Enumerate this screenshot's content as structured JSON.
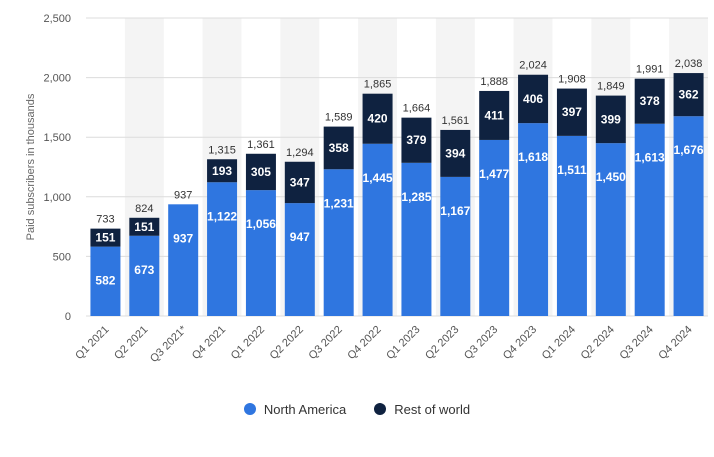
{
  "chart_data": {
    "type": "bar",
    "stacked": true,
    "categories": [
      "Q1 2021",
      "Q2 2021",
      "Q3 2021*",
      "Q4 2021",
      "Q1 2022",
      "Q2 2022",
      "Q3 2022",
      "Q4 2022",
      "Q1 2023",
      "Q2 2023",
      "Q3 2023",
      "Q4 2023",
      "Q1 2024",
      "Q2 2024",
      "Q3 2024",
      "Q4 2024"
    ],
    "series": [
      {
        "name": "North America",
        "color": "#2f76e0",
        "values": [
          582,
          673,
          937,
          1122,
          1056,
          947,
          1231,
          1445,
          1285,
          1167,
          1477,
          1618,
          1511,
          1450,
          1613,
          1676
        ],
        "labels": [
          "582",
          "673",
          "937",
          "1,122",
          "1,056",
          "947",
          "1,231",
          "1,445",
          "1,285",
          "1,167",
          "1,477",
          "1,618",
          "1,511",
          "1,450",
          "1,613",
          "1,676"
        ]
      },
      {
        "name": "Rest of world",
        "color": "#0f2240",
        "values": [
          151,
          151,
          null,
          193,
          305,
          347,
          358,
          420,
          379,
          394,
          411,
          406,
          397,
          399,
          378,
          362
        ],
        "labels": [
          "151",
          "151",
          "",
          "193",
          "305",
          "347",
          "358",
          "420",
          "379",
          "394",
          "411",
          "406",
          "397",
          "399",
          "378",
          "362"
        ]
      }
    ],
    "totals": [
      733,
      824,
      937,
      1315,
      1361,
      1294,
      1589,
      1865,
      1664,
      1561,
      1888,
      2024,
      1908,
      1849,
      1991,
      2038
    ],
    "total_labels": [
      "733",
      "824",
      "937",
      "1,315",
      "1,361",
      "1,294",
      "1,589",
      "1,865",
      "1,664",
      "1,561",
      "1,888",
      "2,024",
      "1,908",
      "1,849",
      "1,991",
      "2,038"
    ],
    "ylabel": "Paid subscribers in thousands",
    "ylim": [
      0,
      2500
    ],
    "yticks": [
      0,
      500,
      1000,
      1500,
      2000,
      2500
    ],
    "ytick_labels": [
      "0",
      "500",
      "1,000",
      "1,500",
      "2,000",
      "2,500"
    ],
    "grid": true,
    "legend_position": "bottom-center"
  }
}
